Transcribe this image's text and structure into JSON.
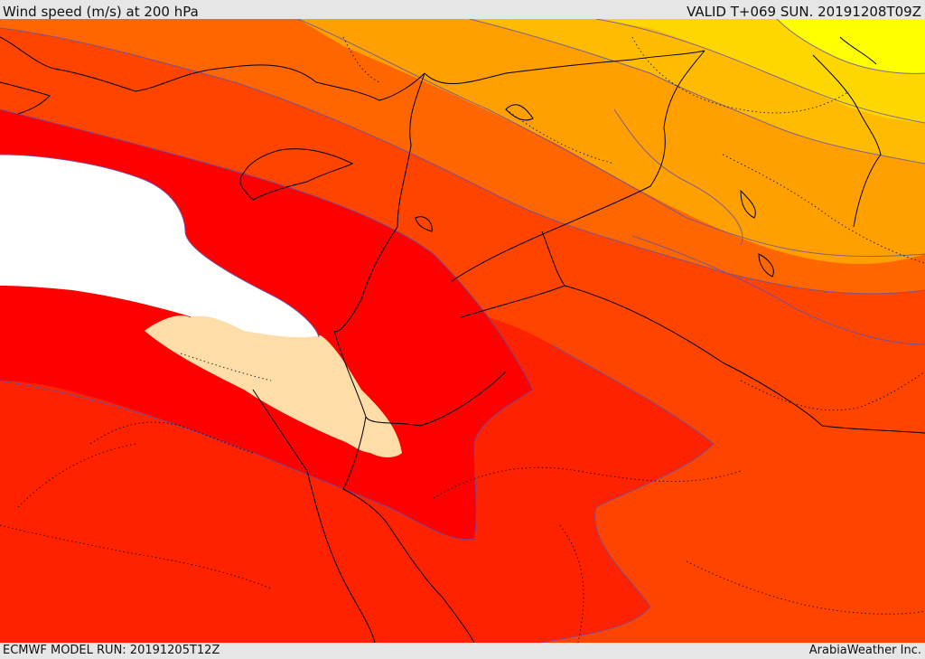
{
  "header": {
    "title": "Wind speed (m/s) at 200 hPa",
    "valid": "VALID T+069 SUN. 20191208T09Z"
  },
  "footer": {
    "model_run": "ECMWF MODEL RUN: 20191205T12Z",
    "credit": "ArabiaWeather Inc."
  },
  "map": {
    "variable": "wind speed",
    "level_hpa": 200,
    "units": "m/s",
    "colors": {
      "bright_yellow": "#ffff00",
      "yellow": "#ffd700",
      "amber": "#ffbb00",
      "light_orange": "#ffa000",
      "orange": "#ff6600",
      "orange_red": "#ff4400",
      "red_orange": "#ff2200",
      "red": "#ff0000",
      "jet_core": "#ffffff",
      "sand": "#ffdda8",
      "contour": "#6050b0",
      "border": "#000000"
    }
  }
}
